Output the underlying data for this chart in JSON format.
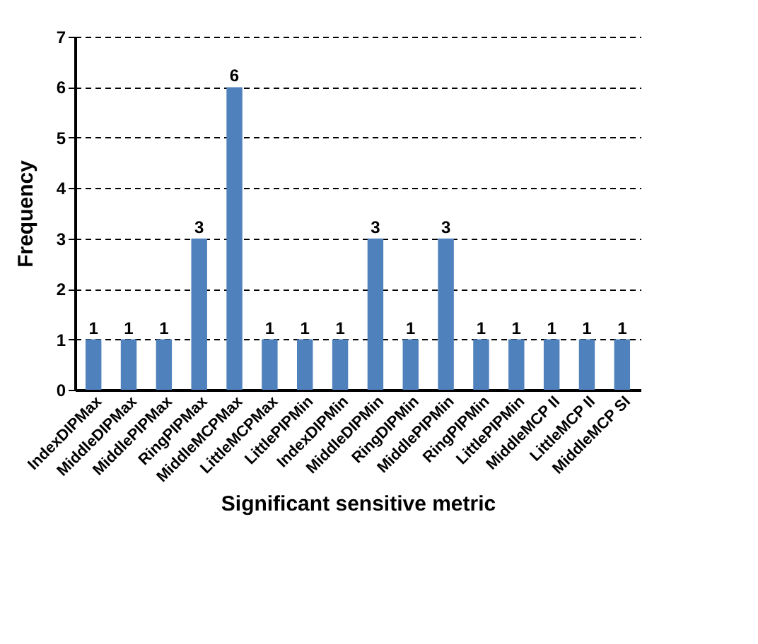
{
  "chart_data": {
    "type": "bar",
    "xlabel": "Significant sensitive metric",
    "ylabel": "Frequency",
    "categories": [
      "IndexDIPMax",
      "MiddleDIPMax",
      "MiddlePIPMax",
      "RingPIPMax",
      "MiddleMCPMax",
      "LittleMCPMax",
      "LittlePIPMin",
      "IndexDIPMin",
      "MiddleDIPMin",
      "RingDIPMin",
      "MiddlePIPMin",
      "RingPIPMin",
      "LittlePIPMin",
      "MiddleMCP II",
      "LittleMCP II",
      "MiddleMCP SI"
    ],
    "values": [
      1,
      1,
      1,
      3,
      6,
      1,
      1,
      1,
      3,
      1,
      3,
      1,
      1,
      1,
      1,
      1
    ],
    "color": "#4f81bd",
    "ylim": [
      0,
      7
    ],
    "yticks": [
      0,
      1,
      2,
      3,
      4,
      5,
      6,
      7
    ],
    "grid": "y",
    "data_labels": true
  }
}
